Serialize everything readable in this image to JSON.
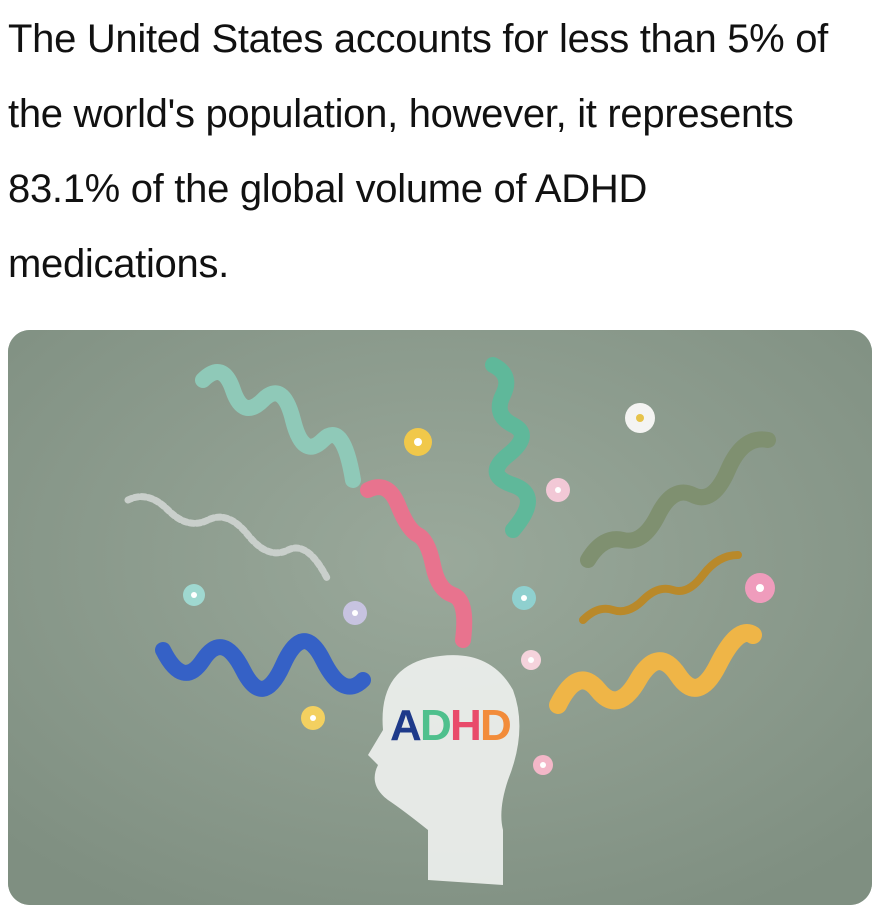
{
  "post": {
    "caption": "The United States accounts for less than 5% of the world's population, however, it represents 83.1% of the global volume of ADHD medications."
  },
  "photo": {
    "head_letters": [
      "A",
      "D",
      "H",
      "D"
    ],
    "letter_colors": [
      "#1e3a8a",
      "#4fc08d",
      "#e94b6a",
      "#f28c3a"
    ],
    "background_color": "#8c9c8e"
  }
}
